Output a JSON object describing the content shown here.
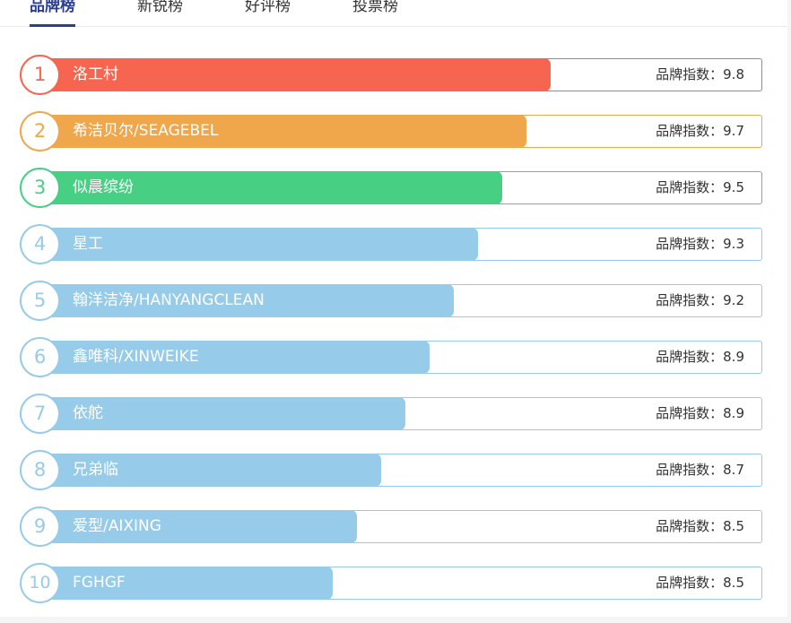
{
  "tabs": [
    {
      "label": "品牌榜",
      "active": true
    },
    {
      "label": "新锐榜",
      "active": false
    },
    {
      "label": "好评榜",
      "active": false
    },
    {
      "label": "投票榜",
      "active": false
    }
  ],
  "score_label": "品牌指数：",
  "brands": [
    {
      "rank": "1",
      "name": "洛工村",
      "score": "9.8",
      "color": "#f6654f",
      "fill": 0.98
    },
    {
      "rank": "2",
      "name": "希洁贝尔/SEAGEBEL",
      "score": "9.7",
      "color": "#f0a64a",
      "fill": 0.97
    },
    {
      "rank": "3",
      "name": "似晨缤纷",
      "score": "9.5",
      "color": "#47cf84",
      "fill": 0.95
    },
    {
      "rank": "4",
      "name": "星工",
      "score": "9.3",
      "color": "#96cbe9",
      "fill": 0.93
    },
    {
      "rank": "5",
      "name": "翰洋洁净/HANYANGCLEAN",
      "score": "9.2",
      "color": "#96cbe9",
      "fill": 0.92
    },
    {
      "rank": "6",
      "name": "鑫唯科/XINWEIKE",
      "score": "8.9",
      "color": "#96cbe9",
      "fill": 0.89
    },
    {
      "rank": "7",
      "name": "依舵",
      "score": "8.9",
      "color": "#96cbe9",
      "fill": 0.89
    },
    {
      "rank": "8",
      "name": "兄弟临",
      "score": "8.7",
      "color": "#96cbe9",
      "fill": 0.87
    },
    {
      "rank": "9",
      "name": "爱型/AIXING",
      "score": "8.5",
      "color": "#96cbe9",
      "fill": 0.85
    },
    {
      "rank": "10",
      "name": "FGHGF",
      "score": "8.5",
      "color": "#96cbe9",
      "fill": 0.85
    }
  ]
}
